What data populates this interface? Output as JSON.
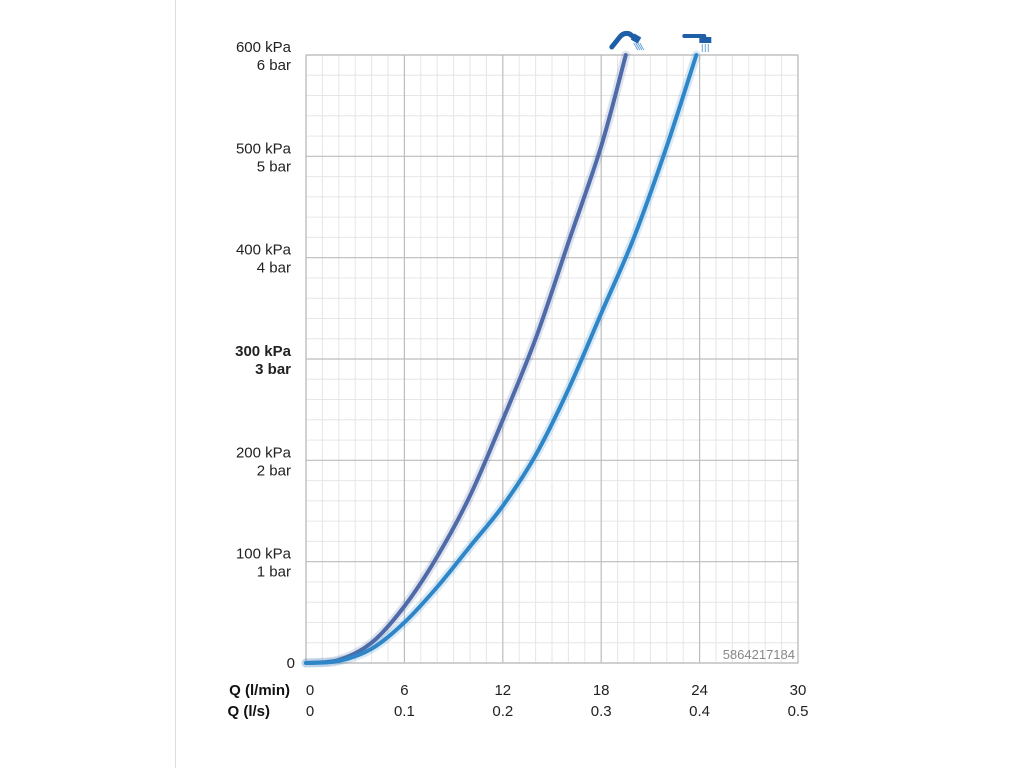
{
  "chart_data": {
    "type": "line",
    "x_axis_primary": {
      "label": "Q (l/min)",
      "ticks": [
        "0",
        "6",
        "12",
        "18",
        "24",
        "30"
      ],
      "range": [
        0,
        30
      ]
    },
    "x_axis_secondary": {
      "label": "Q (l/s)",
      "ticks": [
        "0",
        "0.1",
        "0.2",
        "0.3",
        "0.4",
        "0.5"
      ]
    },
    "y_axis": {
      "range": [
        0,
        600
      ],
      "ticks": [
        {
          "value": 0,
          "kpa": "0",
          "bar": "",
          "bold": false
        },
        {
          "value": 100,
          "kpa": "100 kPa",
          "bar": "1 bar",
          "bold": false
        },
        {
          "value": 200,
          "kpa": "200 kPa",
          "bar": "2 bar",
          "bold": false
        },
        {
          "value": 300,
          "kpa": "300 kPa",
          "bar": "3 bar",
          "bold": true
        },
        {
          "value": 400,
          "kpa": "400 kPa",
          "bar": "4 bar",
          "bold": false
        },
        {
          "value": 500,
          "kpa": "500 kPa",
          "bar": "5 bar",
          "bold": false
        },
        {
          "value": 600,
          "kpa": "600 kPa",
          "bar": "6 bar",
          "bold": false
        }
      ]
    },
    "grid": true,
    "series": [
      {
        "icon": "hand-shower-icon",
        "color": "#4f6aa8",
        "points": [
          [
            0,
            0
          ],
          [
            2,
            3
          ],
          [
            4,
            20
          ],
          [
            6,
            56
          ],
          [
            8,
            105
          ],
          [
            10,
            165
          ],
          [
            12,
            240
          ],
          [
            14,
            320
          ],
          [
            16,
            415
          ],
          [
            18,
            510
          ],
          [
            19.5,
            600
          ]
        ]
      },
      {
        "icon": "overhead-shower-icon",
        "color": "#2e86c8",
        "points": [
          [
            0,
            0
          ],
          [
            2,
            2
          ],
          [
            4,
            14
          ],
          [
            6,
            40
          ],
          [
            8,
            75
          ],
          [
            10,
            115
          ],
          [
            12,
            155
          ],
          [
            14,
            205
          ],
          [
            16,
            270
          ],
          [
            18,
            345
          ],
          [
            20,
            420
          ],
          [
            22,
            510
          ],
          [
            23.8,
            600
          ]
        ]
      }
    ],
    "watermark": "5864217184"
  }
}
